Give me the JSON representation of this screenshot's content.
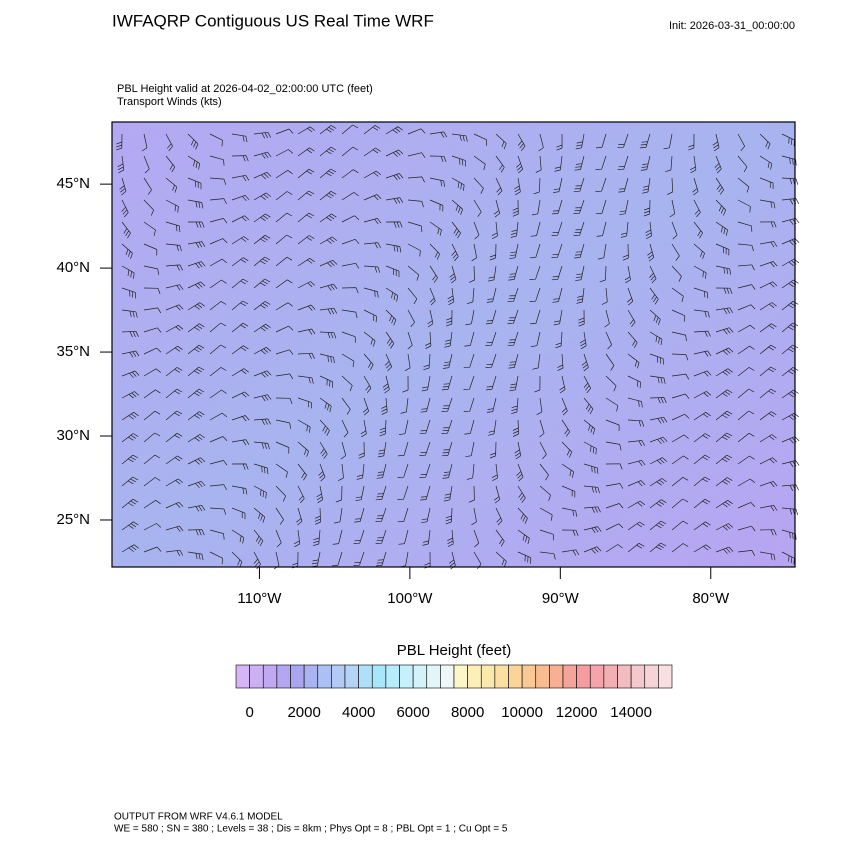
{
  "chart_data": {
    "type": "map",
    "title": "IWFAQRP Contiguous US Real Time WRF",
    "init": "Init: 2026-03-31_00:00:00",
    "subtitle": [
      "PBL Height valid at 2026-04-02_02:00:00 UTC   (feet)",
      "Transport Winds   (kts)"
    ],
    "xlim": [
      -119.8,
      -74.4
    ],
    "ylim": [
      22.2,
      48.7
    ],
    "xticks": [
      {
        "value": -110,
        "label": "110°W"
      },
      {
        "value": -100,
        "label": "100°W"
      },
      {
        "value": -90,
        "label": "90°W"
      },
      {
        "value": -80,
        "label": "80°W"
      }
    ],
    "yticks": [
      {
        "value": 45,
        "label": "45°N"
      },
      {
        "value": 40,
        "label": "40°N"
      },
      {
        "value": 35,
        "label": "35°N"
      },
      {
        "value": 30,
        "label": "30°N"
      },
      {
        "value": 25,
        "label": "25°N"
      }
    ],
    "colorbar": {
      "title": "PBL Height  (feet)",
      "lim": [
        -500,
        15500
      ],
      "ticks": [
        0,
        2000,
        4000,
        6000,
        8000,
        10000,
        12000,
        14000
      ],
      "colors": [
        "#d7b4f5",
        "#cdb0f3",
        "#c0a8f2",
        "#b4a6f0",
        "#a9a6ef",
        "#aab4f1",
        "#acc0f3",
        "#b2caf5",
        "#b4d4f7",
        "#b0e0f9",
        "#a8e6fb",
        "#b8ecfb",
        "#c6f0fb",
        "#d4f2fa",
        "#e2f6fa",
        "#eef8f8",
        "#fdf6c8",
        "#fcefb8",
        "#fbe8ac",
        "#fbdfa2",
        "#fbd49a",
        "#fbc794",
        "#f9bc92",
        "#f7b094",
        "#f5a49a",
        "#f59ca0",
        "#f4a4aa",
        "#f2b0b4",
        "#f2bcc0",
        "#f4c8cc",
        "#f6d4d6",
        "#f8e0e2"
      ]
    },
    "footer": [
      "OUTPUT FROM WRF V4.6.1 MODEL",
      "WE = 580 ; SN = 380 ; Levels = 38 ; Dis = 8km ; Phys Opt = 8 ; PBL Opt = 1 ; Cu Opt = 5"
    ]
  }
}
